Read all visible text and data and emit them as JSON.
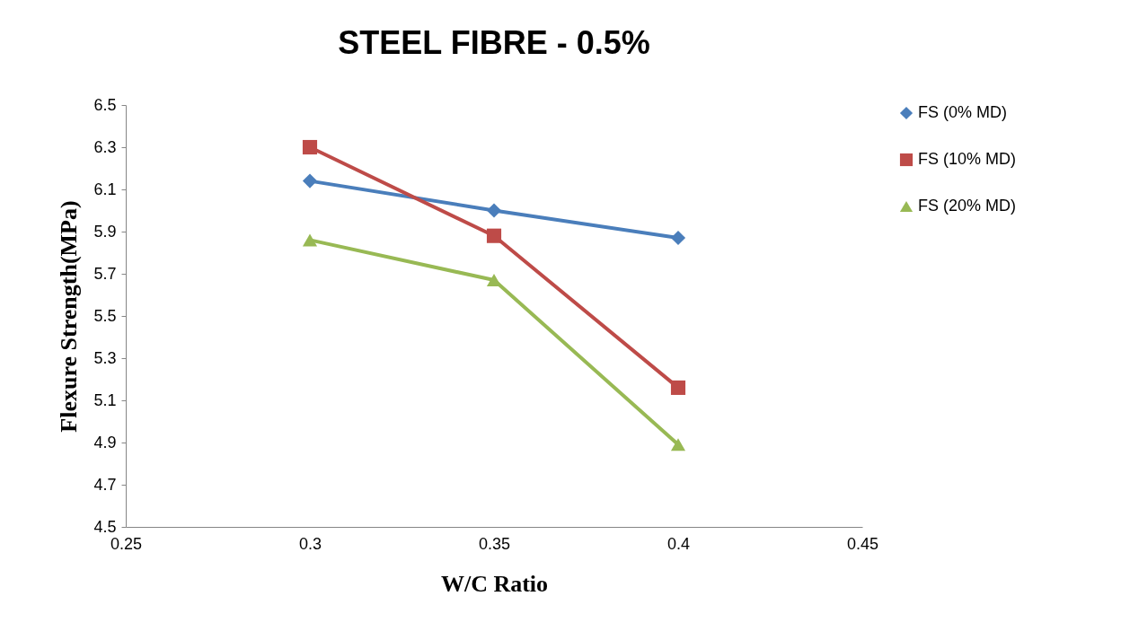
{
  "chart_data": {
    "type": "line",
    "title": "STEEL FIBRE - 0.5%",
    "xlabel": "W/C Ratio",
    "ylabel": "Flexure Strength(MPa)",
    "x": [
      0.3,
      0.35,
      0.4
    ],
    "series": [
      {
        "name": "FS (0% MD)",
        "color": "#4a7ebb",
        "marker": "diamond",
        "values": [
          6.14,
          6.0,
          5.87
        ]
      },
      {
        "name": "FS (10% MD)",
        "color": "#be4b48",
        "marker": "square",
        "values": [
          6.3,
          5.88,
          5.16
        ]
      },
      {
        "name": "FS (20% MD)",
        "color": "#98b954",
        "marker": "triangle",
        "values": [
          5.86,
          5.67,
          4.89
        ]
      }
    ],
    "xlim": [
      0.25,
      0.45
    ],
    "xticks": [
      0.25,
      0.3,
      0.35,
      0.4,
      0.45
    ],
    "ylim": [
      4.5,
      6.5
    ],
    "yticks": [
      4.5,
      4.7,
      4.9,
      5.1,
      5.3,
      5.5,
      5.7,
      5.9,
      6.1,
      6.3,
      6.5
    ],
    "grid": false,
    "legend": "right",
    "line_style": "solid"
  }
}
